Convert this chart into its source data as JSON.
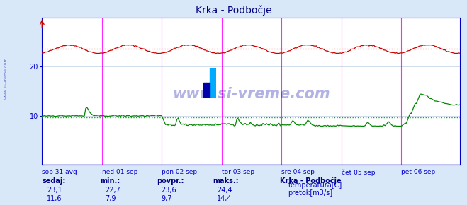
{
  "title": "Krka - Podbočje",
  "bg_color": "#d8e8f8",
  "plot_bg_color": "#ffffff",
  "grid_color": "#c8d8e8",
  "x_labels": [
    "sob 31 avg",
    "ned 01 sep",
    "pon 02 sep",
    "tor 03 sep",
    "sre 04 sep",
    "čet 05 sep",
    "pet 06 sep"
  ],
  "y_ticks": [
    10,
    20
  ],
  "y_min": 0,
  "y_max": 30,
  "temp_color": "#cc0000",
  "flow_color": "#008800",
  "temp_avg_color": "#ff8888",
  "flow_avg_color": "#00bb00",
  "temp_avg": 23.6,
  "flow_avg": 9.7,
  "title_color": "#000080",
  "axis_color": "#0000cc",
  "tick_color": "#0000cc",
  "label_color": "#0000cc",
  "vline_color": "#ff00ff",
  "watermark": "www.si-vreme.com",
  "watermark_color": "#0000aa",
  "watermark_alpha": 0.3,
  "info_labels": [
    "sedaj:",
    "min.:",
    "povpr.:",
    "maks.:"
  ],
  "info_label_color": "#000080",
  "info_values_temp": [
    "23,1",
    "22,7",
    "23,6",
    "24,4"
  ],
  "info_values_flow": [
    "11,6",
    "7,9",
    "9,7",
    "14,4"
  ],
  "info_value_color": "#0000cc",
  "legend_title": "Krka - Podbočje",
  "legend_title_color": "#000080",
  "legend_items": [
    "temperatura[C]",
    "pretok[m3/s]"
  ],
  "legend_colors": [
    "#cc0000",
    "#008800"
  ],
  "n_points": 336,
  "temp_min": 22.7,
  "temp_max": 24.4,
  "flow_min": 7.9,
  "flow_max": 14.4,
  "side_watermark": "www.si-vreme.com"
}
